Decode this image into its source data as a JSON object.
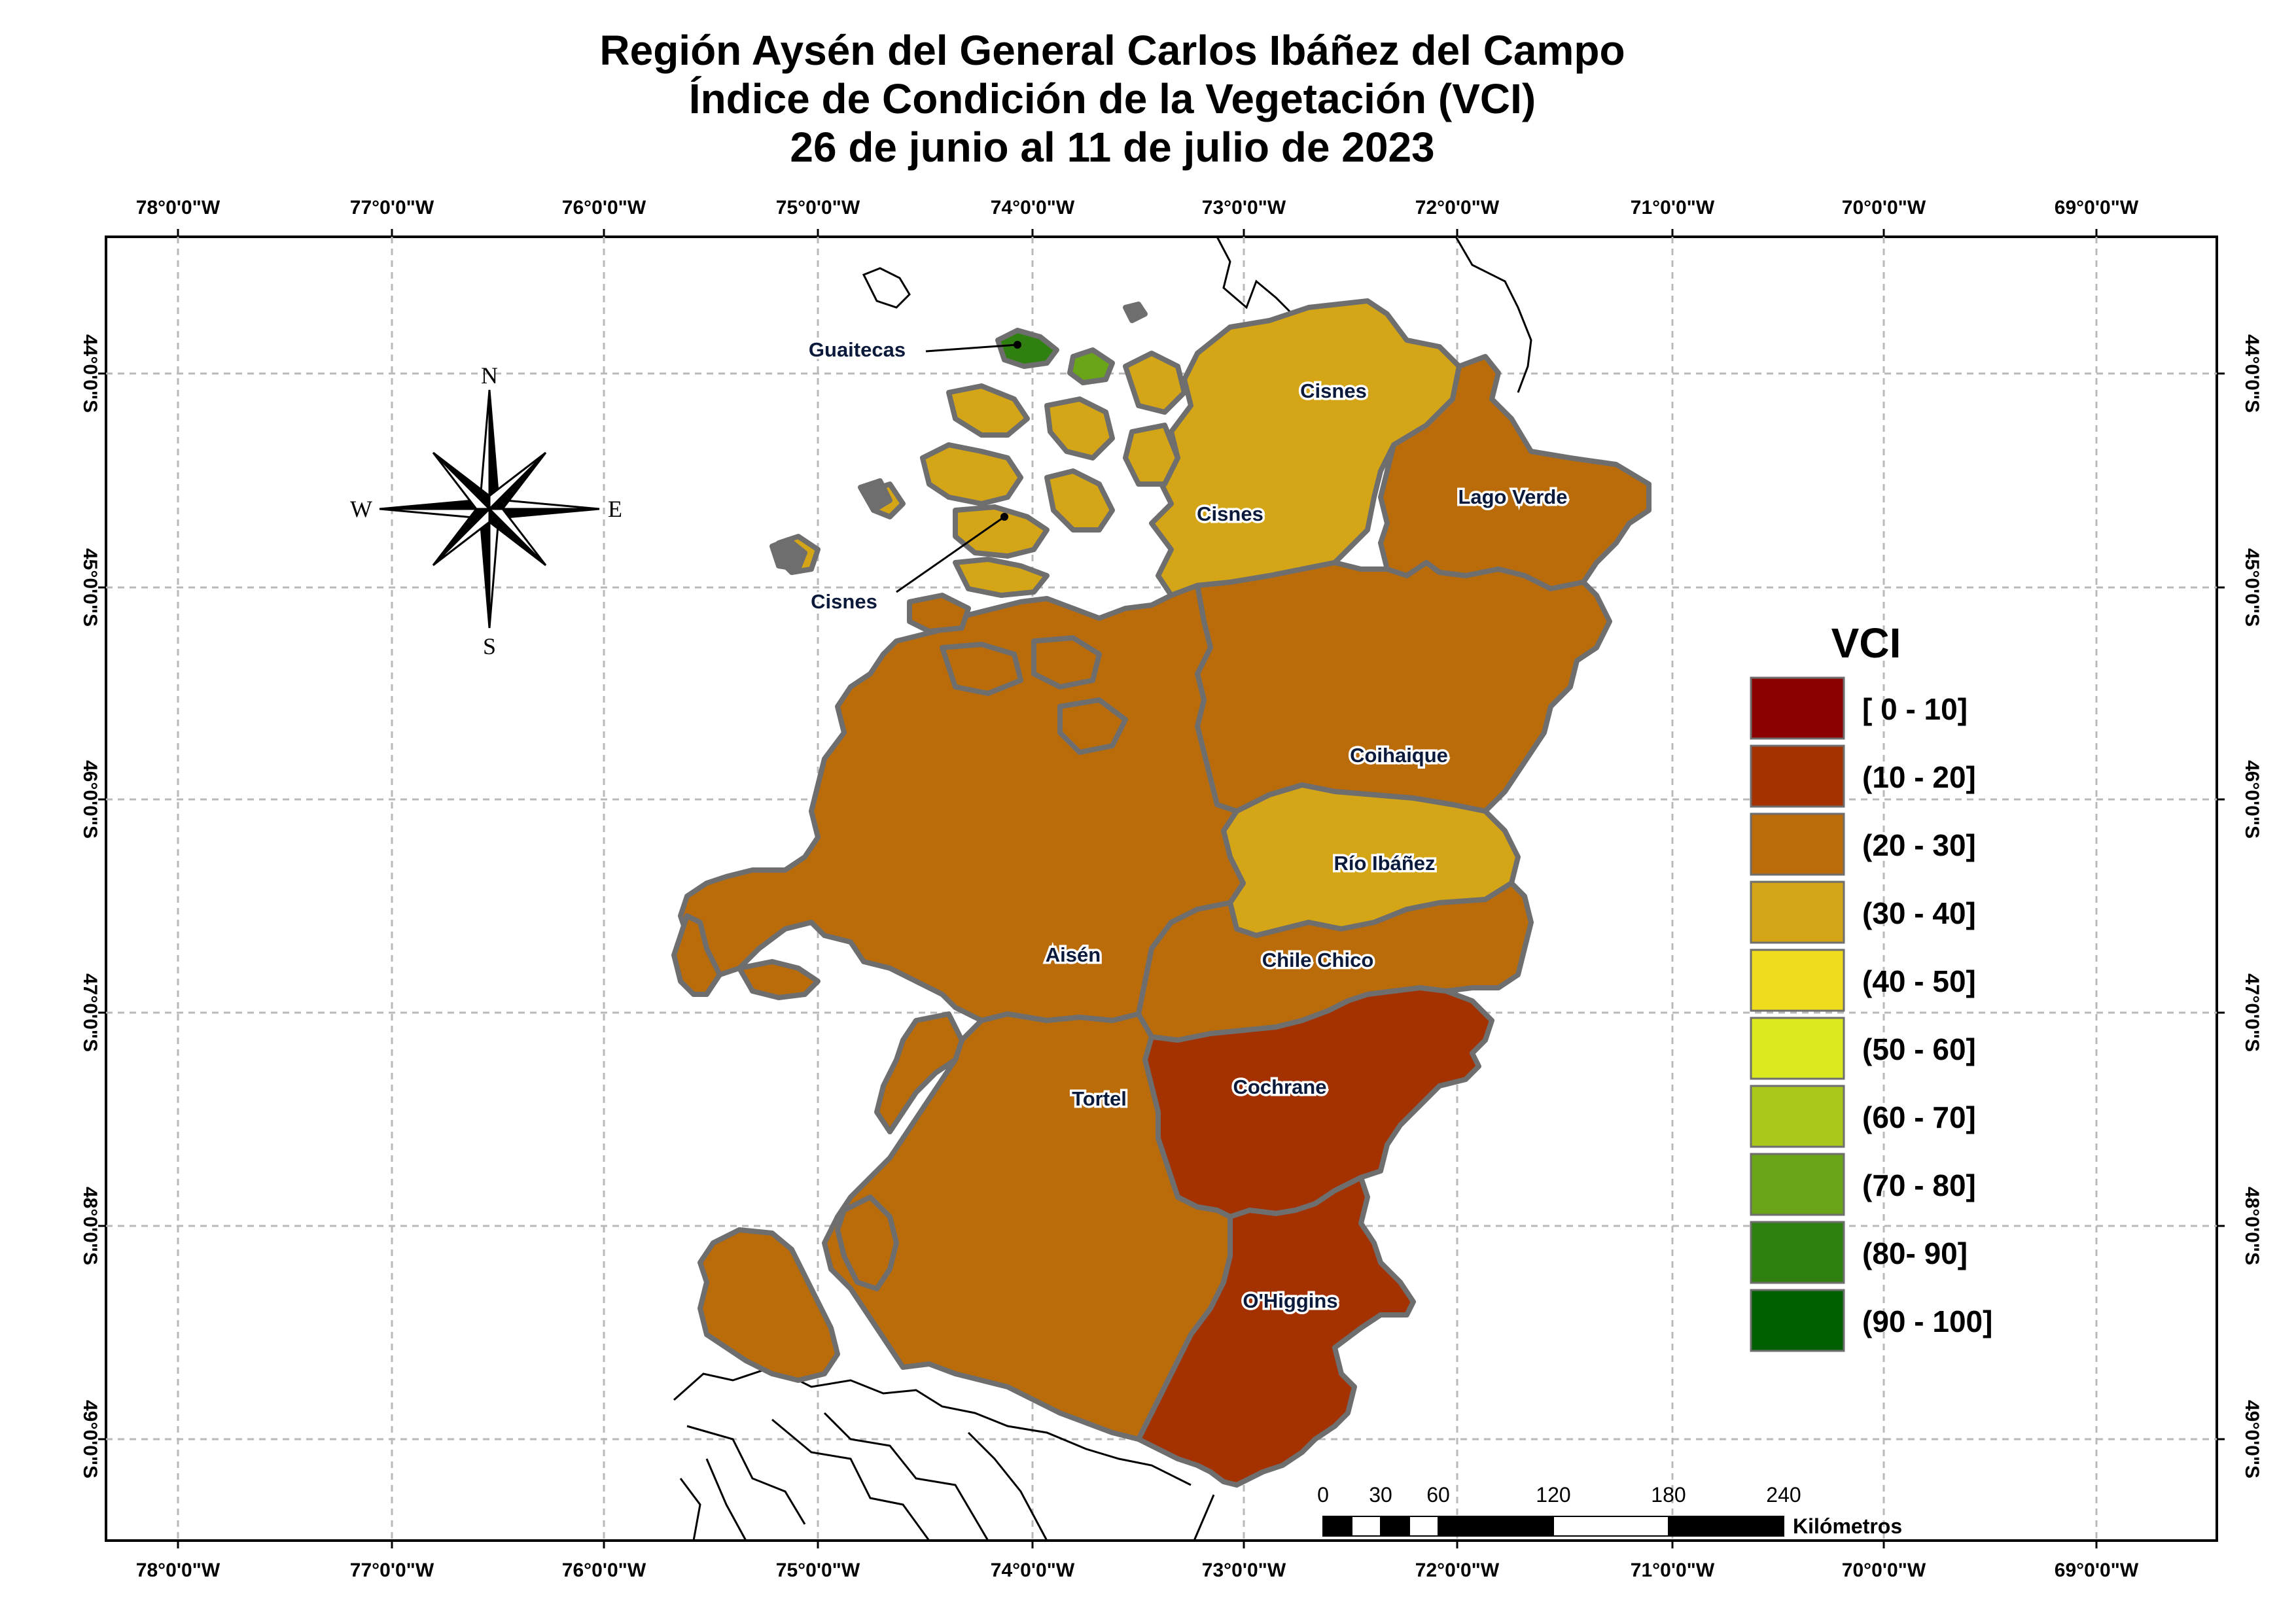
{
  "title": {
    "line1": "Región Aysén del General Carlos Ibáñez del Campo",
    "line2": "Índice de Condición de la Vegetación (VCI)",
    "line3": "26 de junio al 11 de julio de 2023"
  },
  "axes": {
    "longitudes": [
      "78°0'0\"W",
      "77°0'0\"W",
      "76°0'0\"W",
      "75°0'0\"W",
      "74°0'0\"W",
      "73°0'0\"W",
      "72°0'0\"W",
      "71°0'0\"W",
      "70°0'0\"W",
      "69°0'0\"W"
    ],
    "latitudes": [
      "44°0'0\"S",
      "45°0'0\"S",
      "46°0'0\"S",
      "47°0'0\"S",
      "48°0'0\"S",
      "49°0'0\"S"
    ]
  },
  "compass": {
    "north": "N",
    "south": "S",
    "east": "E",
    "west": "W"
  },
  "communes": [
    {
      "name": "Guaitecas",
      "vci_class": "(80- 90]"
    },
    {
      "name": "Cisnes",
      "vci_class": "(30 - 40]"
    },
    {
      "name": "Lago Verde",
      "vci_class": "(20 - 30]"
    },
    {
      "name": "Coihaique",
      "vci_class": "(20 - 30]"
    },
    {
      "name": "Río Ibáñez",
      "vci_class": "(30 - 40]"
    },
    {
      "name": "Aisén",
      "vci_class": "(20 - 30]"
    },
    {
      "name": "Chile Chico",
      "vci_class": "(20 - 30]"
    },
    {
      "name": "Tortel",
      "vci_class": "(20 - 30]"
    },
    {
      "name": "Cochrane",
      "vci_class": "(10 - 20]"
    },
    {
      "name": "O'Higgins",
      "vci_class": "(10 - 20]"
    }
  ],
  "legend": {
    "title": "VCI",
    "items": [
      {
        "label": "[ 0 - 10]",
        "color": "#8b0000"
      },
      {
        "label": "(10 - 20]",
        "color": "#a33200"
      },
      {
        "label": "(20 - 30]",
        "color": "#bb6c0a"
      },
      {
        "label": "(30 - 40]",
        "color": "#d4a617"
      },
      {
        "label": "(40 - 50]",
        "color": "#f0dc1e"
      },
      {
        "label": "(50 - 60]",
        "color": "#dbea1e"
      },
      {
        "label": "(60 - 70]",
        "color": "#a8c81c"
      },
      {
        "label": "(70 - 80]",
        "color": "#6aa418"
      },
      {
        "label": "(80- 90]",
        "color": "#2f8010"
      },
      {
        "label": "(90 - 100]",
        "color": "#005f00"
      }
    ]
  },
  "scale_bar": {
    "ticks": [
      "0",
      "30",
      "60",
      "120",
      "180",
      "240"
    ],
    "unit": "Kilómetros"
  },
  "colors": {
    "boundary": "#6e6e6e",
    "graticule": "#b9b9b9"
  }
}
